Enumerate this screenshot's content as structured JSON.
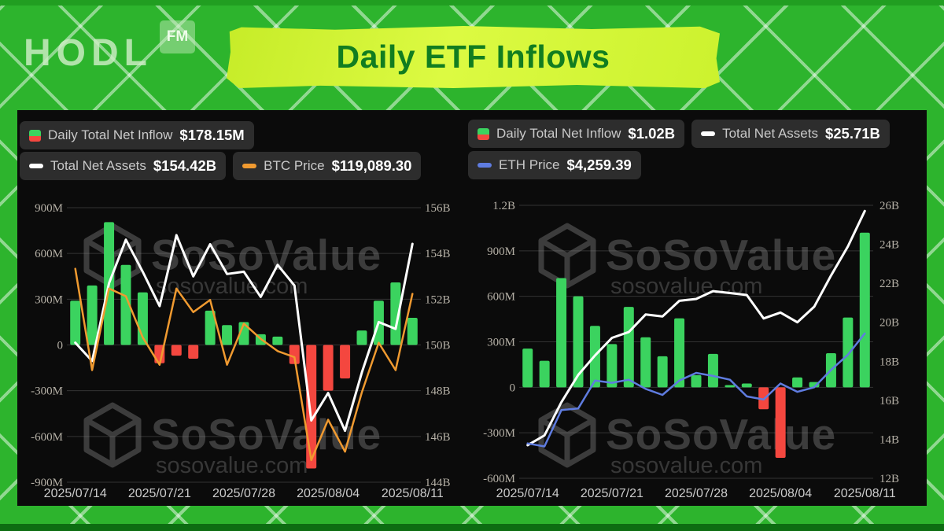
{
  "page": {
    "logo": {
      "text": "HODL",
      "badge": "FM"
    },
    "banner": {
      "title": "Daily ETF Inflows"
    },
    "watermark": {
      "brand": "SoSoValue",
      "domain": "sosovalue.com"
    }
  },
  "colors": {
    "background_green": "#2db42d",
    "banner_lime": "#ccf22e",
    "banner_text_green": "#117d20",
    "panel_black": "#0b0b0b",
    "legend_pill_grey": "#2d2d2d",
    "bar_positive_green": "#3bd35f",
    "bar_negative_red": "#f4473f",
    "net_assets_line_white": "#ffffff",
    "btc_price_line_orange": "#f09a30",
    "eth_price_line_blue": "#5f7ce0",
    "axis_tick_grey": "#b5b0a6",
    "grid_line_grey": "#333333"
  },
  "charts": [
    {
      "id": "bitcoin-etf",
      "legend": [
        {
          "icon": "inflow-bars-icon",
          "label": "Daily Total Net Inflow",
          "value": "$178.15M"
        },
        {
          "icon": "net-assets-line-icon",
          "label": "Total Net Assets",
          "value": "$154.42B"
        },
        {
          "icon": "btc-price-line-icon",
          "label": "BTC Price",
          "value": "$119,089.30"
        }
      ],
      "chart_data": {
        "type": "bar+line",
        "num_points": 21,
        "x_tick_labels": [
          "2025/07/14",
          "2025/07/21",
          "2025/07/28",
          "2025/08/04",
          "2025/08/11"
        ],
        "left_axis": {
          "unit": "USD",
          "tick_labels": [
            "900M",
            "600M",
            "300M",
            "0",
            "-300M",
            "-600M",
            "-900M"
          ],
          "max": 900,
          "min": -900
        },
        "right_axis": {
          "unit": "USD",
          "tick_labels": [
            "156B",
            "154B",
            "152B",
            "150B",
            "148B",
            "146B",
            "144B"
          ],
          "max": 156,
          "min": 144
        },
        "grid": true,
        "legend_position": "top",
        "series": [
          {
            "name": "Daily Total Net Inflow",
            "type": "bar",
            "axis": "left",
            "unit": "M USD",
            "values": [
              290,
              390,
              805,
              525,
              345,
              -120,
              -70,
              -90,
              225,
              130,
              150,
              70,
              55,
              -125,
              -810,
              -300,
              -220,
              95,
              290,
              410,
              178
            ]
          },
          {
            "name": "Total Net Assets",
            "type": "line",
            "axis": "right",
            "unit": "B USD",
            "color": "#ffffff",
            "values": [
              150.1,
              149.3,
              152.7,
              154.6,
              153.2,
              151.7,
              154.8,
              153.0,
              154.4,
              153.1,
              153.2,
              152.1,
              153.5,
              152.6,
              146.7,
              147.9,
              146.25,
              148.8,
              151.0,
              150.7,
              154.42
            ]
          },
          {
            "name": "BTC Price",
            "type": "line",
            "axis": "left-proxy",
            "unit": "USD (axis not labeled in image)",
            "color": "#f09a30",
            "current": "$119,089.30",
            "values": [
              500,
              -165,
              370,
              320,
              50,
              -130,
              370,
              215,
              295,
              -130,
              140,
              40,
              -40,
              -80,
              -755,
              -490,
              -700,
              -310,
              15,
              -165,
              335
            ]
          }
        ]
      }
    },
    {
      "id": "ethereum-etf",
      "legend": [
        {
          "icon": "inflow-bars-icon",
          "label": "Daily Total Net Inflow",
          "value": "$1.02B"
        },
        {
          "icon": "net-assets-line-icon",
          "label": "Total Net Assets",
          "value": "$25.71B"
        },
        {
          "icon": "eth-price-line-icon",
          "label": "ETH Price",
          "value": "$4,259.39"
        }
      ],
      "chart_data": {
        "type": "bar+line",
        "num_points": 21,
        "x_tick_labels": [
          "2025/07/14",
          "2025/07/21",
          "2025/07/28",
          "2025/08/04",
          "2025/08/11"
        ],
        "left_axis": {
          "unit": "USD",
          "tick_labels": [
            "1.2B",
            "900M",
            "600M",
            "300M",
            "0",
            "-300M",
            "-600M"
          ],
          "max": 1200,
          "min": -600
        },
        "right_axis": {
          "unit": "USD",
          "tick_labels": [
            "26B",
            "24B",
            "22B",
            "20B",
            "18B",
            "16B",
            "14B",
            "12B"
          ],
          "max": 26,
          "min": 12
        },
        "grid": true,
        "legend_position": "top",
        "series": [
          {
            "name": "Daily Total Net Inflow",
            "type": "bar",
            "axis": "left",
            "unit": "M USD",
            "values": [
              255,
              175,
              720,
              600,
              405,
              285,
              530,
              330,
              205,
              455,
              80,
              220,
              15,
              25,
              -145,
              -465,
              65,
              35,
              225,
              460,
              1020
            ]
          },
          {
            "name": "Total Net Assets",
            "type": "line",
            "axis": "right",
            "unit": "B USD",
            "color": "#ffffff",
            "values": [
              13.7,
              14.2,
              15.9,
              17.3,
              18.3,
              19.2,
              19.5,
              20.4,
              20.3,
              21.1,
              21.2,
              21.6,
              21.5,
              21.4,
              20.2,
              20.5,
              20.0,
              20.8,
              22.4,
              23.9,
              25.71
            ]
          },
          {
            "name": "ETH Price",
            "type": "line",
            "axis": "left-proxy",
            "unit": "USD (axis not labeled in image)",
            "color": "#5f7ce0",
            "current": "$4,259.39",
            "values": [
              -370,
              -390,
              -150,
              -140,
              45,
              30,
              50,
              -10,
              -50,
              45,
              95,
              75,
              50,
              -60,
              -80,
              25,
              -30,
              0,
              115,
              215,
              355
            ]
          }
        ]
      }
    }
  ]
}
